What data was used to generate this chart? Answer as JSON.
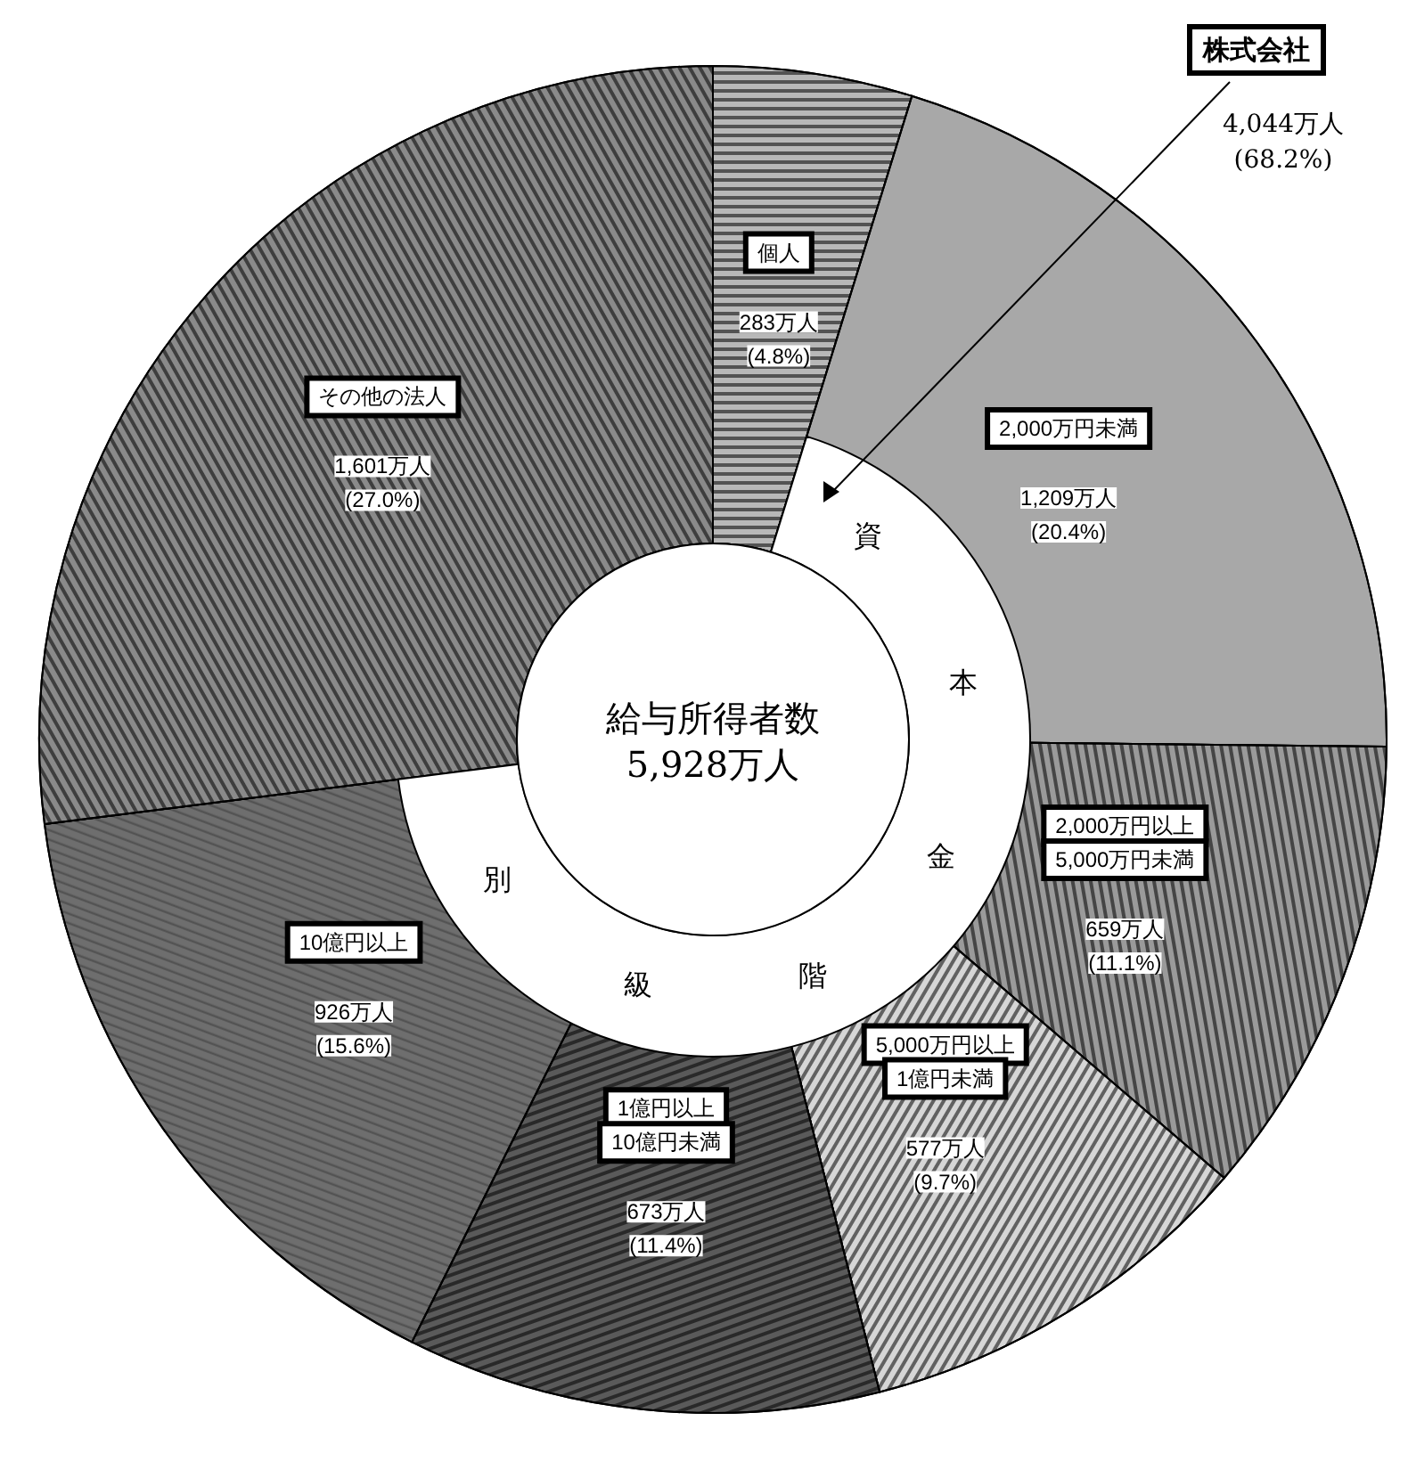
{
  "chart_data": {
    "type": "donut",
    "categories": [
      "個人",
      "2,000万円未満",
      "2,000万円以上\n5,000万円未満",
      "5,000万円以上\n1億円未満",
      "1億円以上\n10億円未満",
      "10億円以上",
      "その他の法人"
    ],
    "values": [
      283,
      1209,
      659,
      577,
      673,
      926,
      1601
    ],
    "value_labels": [
      "283万人\n(4.8%)",
      "1,209万人\n(20.4%)",
      "659万人\n(11.1%)",
      "577万人\n(9.7%)",
      "673万人\n(11.4%)",
      "926万人\n(15.6%)",
      "1,601万人\n(27.0%)"
    ],
    "colors": [
      "#b8b8b8",
      "#a8a8a8",
      "#9a9a9a",
      "#d6d6d6",
      "#5a5a5a",
      "#6e6e6e",
      "#8a8a8a"
    ],
    "annotations": [
      "株式会社",
      "4,044万人\n(68.2%)",
      "給与所得者数",
      "5,928万人",
      "資",
      "本",
      "金",
      "階",
      "級",
      "別"
    ]
  }
}
